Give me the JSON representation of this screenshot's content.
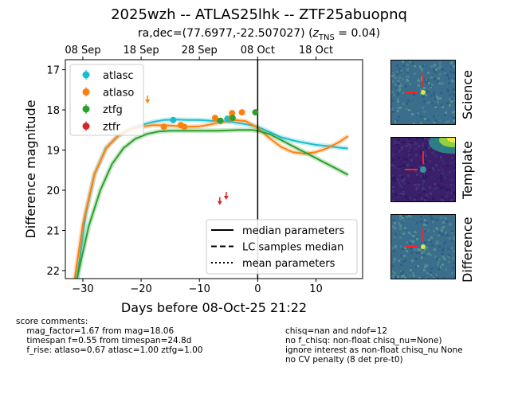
{
  "header": {
    "title": "2025wzh -- ATLAS25lhk -- ZTF25abuopnq",
    "subtitle": "ra,dec=(77.6977,-22.507027) (z_TNS = 0.04)",
    "subtitle_pre": "ra,dec=(77.6977,-22.507027) (",
    "subtitle_z": "z",
    "subtitle_sub": "TNS",
    "subtitle_post": " = 0.04)"
  },
  "chart_data": {
    "type": "scatter",
    "xlabel": "Days before 08-Oct-25 21:22",
    "ylabel": "Difference magnitude",
    "xlim": [
      -33,
      18
    ],
    "ylim": [
      22.2,
      16.75
    ],
    "y_inverted": true,
    "x_ticks": [
      -30,
      -20,
      -10,
      0,
      10
    ],
    "y_ticks": [
      17,
      18,
      19,
      20,
      21,
      22
    ],
    "top_axis_ticks": [
      {
        "label": "08 Sep",
        "x": -30
      },
      {
        "label": "18 Sep",
        "x": -20
      },
      {
        "label": "28 Sep",
        "x": -10
      },
      {
        "label": "08 Oct",
        "x": 0
      },
      {
        "label": "18 Oct",
        "x": 10
      }
    ],
    "vline_x": 0,
    "series": [
      {
        "name": "atlasc",
        "color": "#17becf",
        "points": [
          {
            "x": -14.5,
            "y": 18.25,
            "err": 0.07
          },
          {
            "x": -5.2,
            "y": 18.22,
            "err": 0.06
          }
        ]
      },
      {
        "name": "atlaso",
        "color": "#ff7f0e",
        "points": [
          {
            "x": -16.1,
            "y": 18.42,
            "err": 0.05
          },
          {
            "x": -13.2,
            "y": 18.38,
            "err": 0.05
          },
          {
            "x": -12.6,
            "y": 18.42,
            "err": 0.05
          },
          {
            "x": -7.3,
            "y": 18.2,
            "err": 0.05
          },
          {
            "x": -4.5,
            "y": 18.2,
            "err": 0.05
          },
          {
            "x": -4.4,
            "y": 18.08,
            "err": 0.05
          },
          {
            "x": -2.7,
            "y": 18.06,
            "err": 0.05
          }
        ]
      },
      {
        "name": "ztfg",
        "color": "#2ca02c",
        "points": [
          {
            "x": -6.4,
            "y": 18.27,
            "err": 0.04
          },
          {
            "x": -4.3,
            "y": 18.2,
            "err": 0.04
          },
          {
            "x": -0.4,
            "y": 18.06,
            "err": 0.04
          }
        ]
      },
      {
        "name": "ztfr",
        "color": "#d62728",
        "points": []
      }
    ],
    "upper_limits": [
      {
        "series": "atlaso",
        "x": -18.9,
        "y": 17.72
      },
      {
        "series": "ztfr",
        "x": -5.4,
        "y": 20.12
      },
      {
        "series": "ztfr",
        "x": -6.5,
        "y": 20.25
      }
    ],
    "model_curves": [
      {
        "series": "atlasc",
        "color": "#17becf",
        "points": [
          [
            -31,
            22.2
          ],
          [
            -29.5,
            20.6
          ],
          [
            -28,
            19.6
          ],
          [
            -26,
            18.95
          ],
          [
            -24,
            18.65
          ],
          [
            -22,
            18.48
          ],
          [
            -20,
            18.38
          ],
          [
            -18,
            18.3
          ],
          [
            -16,
            18.25
          ],
          [
            -14,
            18.24
          ],
          [
            -12,
            18.25
          ],
          [
            -10,
            18.25
          ],
          [
            -8,
            18.27
          ],
          [
            -6,
            18.28
          ],
          [
            -4,
            18.31
          ],
          [
            -2,
            18.36
          ],
          [
            0,
            18.42
          ],
          [
            2,
            18.55
          ],
          [
            4,
            18.68
          ],
          [
            6,
            18.76
          ],
          [
            8,
            18.82
          ],
          [
            10,
            18.87
          ],
          [
            12,
            18.9
          ],
          [
            14,
            18.94
          ],
          [
            15.5,
            18.96
          ]
        ]
      },
      {
        "series": "atlaso",
        "color": "#ff7f0e",
        "points": [
          [
            -31.4,
            22.2
          ],
          [
            -30,
            20.85
          ],
          [
            -28,
            19.6
          ],
          [
            -26,
            18.95
          ],
          [
            -24,
            18.65
          ],
          [
            -22,
            18.48
          ],
          [
            -20,
            18.42
          ],
          [
            -18,
            18.38
          ],
          [
            -16,
            18.38
          ],
          [
            -14,
            18.4
          ],
          [
            -12,
            18.42
          ],
          [
            -10,
            18.41
          ],
          [
            -8,
            18.36
          ],
          [
            -6,
            18.3
          ],
          [
            -4,
            18.25
          ],
          [
            -2,
            18.28
          ],
          [
            0,
            18.45
          ],
          [
            2,
            18.7
          ],
          [
            4,
            18.92
          ],
          [
            6,
            19.05
          ],
          [
            8,
            19.09
          ],
          [
            10,
            19.05
          ],
          [
            12,
            18.95
          ],
          [
            14,
            18.8
          ],
          [
            15.5,
            18.65
          ]
        ]
      },
      {
        "series": "ztfg",
        "color": "#2ca02c",
        "points": [
          [
            -31,
            22.2
          ],
          [
            -29,
            20.9
          ],
          [
            -27,
            20.0
          ],
          [
            -25,
            19.35
          ],
          [
            -23,
            18.95
          ],
          [
            -21,
            18.72
          ],
          [
            -19,
            18.6
          ],
          [
            -17,
            18.54
          ],
          [
            -15,
            18.52
          ],
          [
            -13,
            18.52
          ],
          [
            -11,
            18.52
          ],
          [
            -9,
            18.52
          ],
          [
            -7,
            18.52
          ],
          [
            -5,
            18.51
          ],
          [
            -3,
            18.5
          ],
          [
            -1,
            18.5
          ],
          [
            0,
            18.52
          ],
          [
            2,
            18.6
          ],
          [
            4,
            18.75
          ],
          [
            6,
            18.9
          ],
          [
            8,
            19.05
          ],
          [
            10,
            19.2
          ],
          [
            12,
            19.35
          ],
          [
            14,
            19.5
          ],
          [
            15.5,
            19.62
          ]
        ]
      }
    ],
    "legend_series": [
      "atlasc",
      "atlaso",
      "ztfg",
      "ztfr"
    ],
    "legend_series_location": "upper-left",
    "legend_lines": [
      {
        "label": "median parameters",
        "style": "solid"
      },
      {
        "label": "LC samples median",
        "style": "dashed"
      },
      {
        "label": "mean parameters",
        "style": "dotted"
      }
    ],
    "legend_lines_location": "lower-right"
  },
  "cutouts": [
    {
      "label": "Science",
      "kind": "science"
    },
    {
      "label": "Template",
      "kind": "template"
    },
    {
      "label": "Difference",
      "kind": "difference"
    }
  ],
  "comments": {
    "left": "score comments:\n    mag_factor=1.67 from mag=18.06\n    timespan f=0.55 from timespan=24.8d\n    f_rise: atlaso=0.67 atlasc=1.00 ztfg=1.00",
    "right": "chisq=nan and ndof=12\nno f_chisq: non-float chisq_nu=None)\nignore interest as non-float chisq_nu None\nno CV penalty (8 det pre-t0)"
  }
}
